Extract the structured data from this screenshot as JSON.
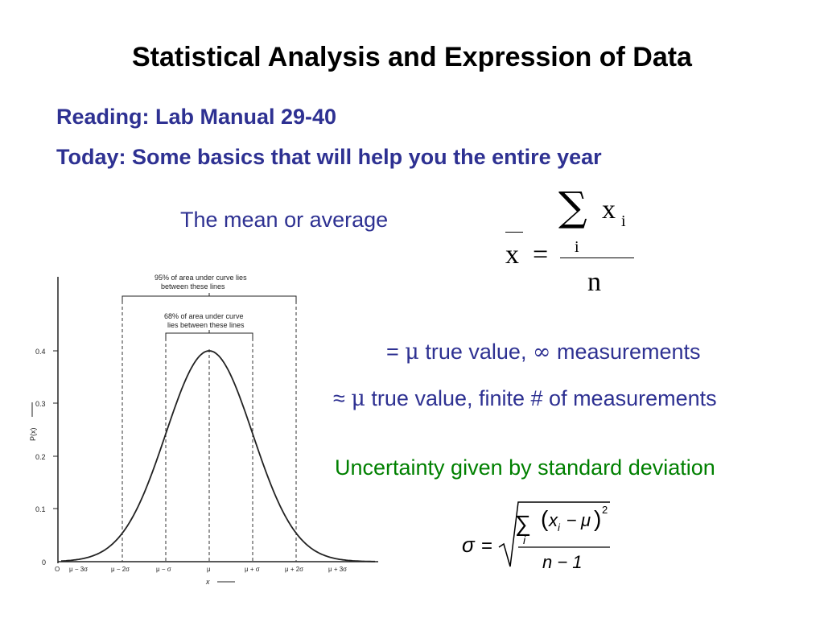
{
  "slide": {
    "title": "Statistical Analysis and Expression of Data",
    "reading": "Reading:  Lab Manual 29-40",
    "today": "Today:  Some basics that will help you the entire year",
    "mean_label": "The mean or average",
    "approx_true": {
      "sign": "=",
      "mu": "μ",
      "text1": "true value,",
      "inf": "∞",
      "text2": "measurements"
    },
    "approx_finite": {
      "sign": "≈",
      "mu": "μ",
      "text": "true value, finite # of measurements"
    },
    "uncertainty": "Uncertainty given by standard deviation",
    "mean_formula": {
      "sum": "∑",
      "x": "x",
      "sub_i": "i",
      "equals": "=",
      "n": "n"
    },
    "sd_formula": {
      "sigma": "σ",
      "equals": "=",
      "sum": "∑",
      "sub_i": "i",
      "x": "x",
      "minus": "−",
      "mu": "μ",
      "square": "2",
      "n_minus_1": "n − 1"
    },
    "figure": {
      "bracket_95": [
        "95% of area under curve lies",
        "between these lines"
      ],
      "bracket_68": [
        "68% of area under curve",
        "lies between these lines"
      ],
      "y_axis_label": "P(x)",
      "x_axis_label": "x",
      "y_ticks": [
        "0.4",
        "0.3",
        "0.2",
        "0.1",
        "0"
      ],
      "x_ticks": [
        "O",
        "μ − 3σ",
        "μ − 2σ",
        "μ − σ",
        "μ",
        "μ + σ",
        "μ + 2σ",
        "μ + 3σ"
      ]
    },
    "colors": {
      "heading_blue": "#2e3192",
      "text_blue": "#2e3192",
      "green": "#008000"
    }
  }
}
